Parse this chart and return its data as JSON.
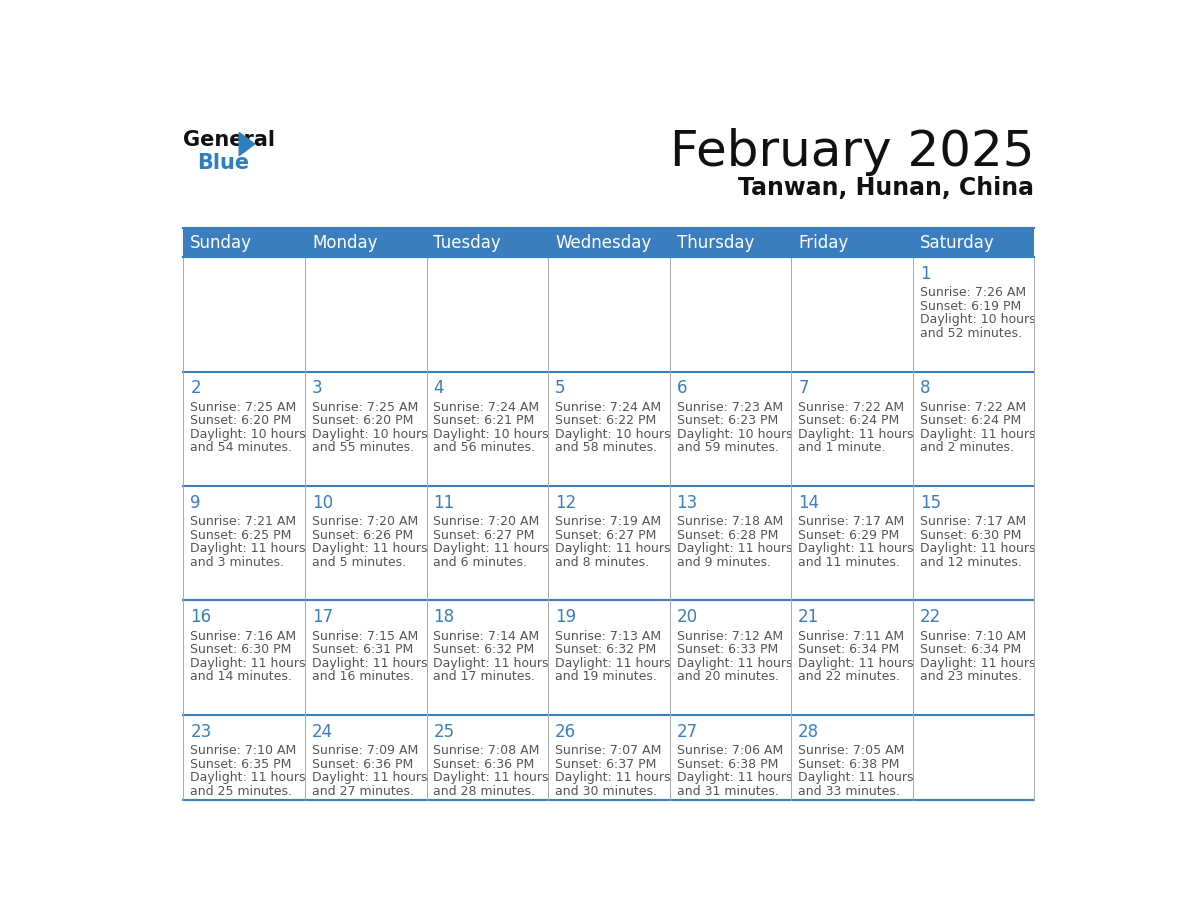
{
  "title": "February 2025",
  "subtitle": "Tanwan, Hunan, China",
  "header_bg_color": "#3a7ebf",
  "header_text_color": "#ffffff",
  "cell_bg_color": "#ffffff",
  "day_number_color": "#3a7ebf",
  "text_color": "#555555",
  "border_color": "#3a7ebf",
  "line_color": "#aaaaaa",
  "days_of_week": [
    "Sunday",
    "Monday",
    "Tuesday",
    "Wednesday",
    "Thursday",
    "Friday",
    "Saturday"
  ],
  "calendar_data": [
    [
      null,
      null,
      null,
      null,
      null,
      null,
      {
        "day": "1",
        "sunrise": "7:26 AM",
        "sunset": "6:19 PM",
        "daylight_line1": "Daylight: 10 hours",
        "daylight_line2": "and 52 minutes."
      }
    ],
    [
      {
        "day": "2",
        "sunrise": "7:25 AM",
        "sunset": "6:20 PM",
        "daylight_line1": "Daylight: 10 hours",
        "daylight_line2": "and 54 minutes."
      },
      {
        "day": "3",
        "sunrise": "7:25 AM",
        "sunset": "6:20 PM",
        "daylight_line1": "Daylight: 10 hours",
        "daylight_line2": "and 55 minutes."
      },
      {
        "day": "4",
        "sunrise": "7:24 AM",
        "sunset": "6:21 PM",
        "daylight_line1": "Daylight: 10 hours",
        "daylight_line2": "and 56 minutes."
      },
      {
        "day": "5",
        "sunrise": "7:24 AM",
        "sunset": "6:22 PM",
        "daylight_line1": "Daylight: 10 hours",
        "daylight_line2": "and 58 minutes."
      },
      {
        "day": "6",
        "sunrise": "7:23 AM",
        "sunset": "6:23 PM",
        "daylight_line1": "Daylight: 10 hours",
        "daylight_line2": "and 59 minutes."
      },
      {
        "day": "7",
        "sunrise": "7:22 AM",
        "sunset": "6:24 PM",
        "daylight_line1": "Daylight: 11 hours",
        "daylight_line2": "and 1 minute."
      },
      {
        "day": "8",
        "sunrise": "7:22 AM",
        "sunset": "6:24 PM",
        "daylight_line1": "Daylight: 11 hours",
        "daylight_line2": "and 2 minutes."
      }
    ],
    [
      {
        "day": "9",
        "sunrise": "7:21 AM",
        "sunset": "6:25 PM",
        "daylight_line1": "Daylight: 11 hours",
        "daylight_line2": "and 3 minutes."
      },
      {
        "day": "10",
        "sunrise": "7:20 AM",
        "sunset": "6:26 PM",
        "daylight_line1": "Daylight: 11 hours",
        "daylight_line2": "and 5 minutes."
      },
      {
        "day": "11",
        "sunrise": "7:20 AM",
        "sunset": "6:27 PM",
        "daylight_line1": "Daylight: 11 hours",
        "daylight_line2": "and 6 minutes."
      },
      {
        "day": "12",
        "sunrise": "7:19 AM",
        "sunset": "6:27 PM",
        "daylight_line1": "Daylight: 11 hours",
        "daylight_line2": "and 8 minutes."
      },
      {
        "day": "13",
        "sunrise": "7:18 AM",
        "sunset": "6:28 PM",
        "daylight_line1": "Daylight: 11 hours",
        "daylight_line2": "and 9 minutes."
      },
      {
        "day": "14",
        "sunrise": "7:17 AM",
        "sunset": "6:29 PM",
        "daylight_line1": "Daylight: 11 hours",
        "daylight_line2": "and 11 minutes."
      },
      {
        "day": "15",
        "sunrise": "7:17 AM",
        "sunset": "6:30 PM",
        "daylight_line1": "Daylight: 11 hours",
        "daylight_line2": "and 12 minutes."
      }
    ],
    [
      {
        "day": "16",
        "sunrise": "7:16 AM",
        "sunset": "6:30 PM",
        "daylight_line1": "Daylight: 11 hours",
        "daylight_line2": "and 14 minutes."
      },
      {
        "day": "17",
        "sunrise": "7:15 AM",
        "sunset": "6:31 PM",
        "daylight_line1": "Daylight: 11 hours",
        "daylight_line2": "and 16 minutes."
      },
      {
        "day": "18",
        "sunrise": "7:14 AM",
        "sunset": "6:32 PM",
        "daylight_line1": "Daylight: 11 hours",
        "daylight_line2": "and 17 minutes."
      },
      {
        "day": "19",
        "sunrise": "7:13 AM",
        "sunset": "6:32 PM",
        "daylight_line1": "Daylight: 11 hours",
        "daylight_line2": "and 19 minutes."
      },
      {
        "day": "20",
        "sunrise": "7:12 AM",
        "sunset": "6:33 PM",
        "daylight_line1": "Daylight: 11 hours",
        "daylight_line2": "and 20 minutes."
      },
      {
        "day": "21",
        "sunrise": "7:11 AM",
        "sunset": "6:34 PM",
        "daylight_line1": "Daylight: 11 hours",
        "daylight_line2": "and 22 minutes."
      },
      {
        "day": "22",
        "sunrise": "7:10 AM",
        "sunset": "6:34 PM",
        "daylight_line1": "Daylight: 11 hours",
        "daylight_line2": "and 23 minutes."
      }
    ],
    [
      {
        "day": "23",
        "sunrise": "7:10 AM",
        "sunset": "6:35 PM",
        "daylight_line1": "Daylight: 11 hours",
        "daylight_line2": "and 25 minutes."
      },
      {
        "day": "24",
        "sunrise": "7:09 AM",
        "sunset": "6:36 PM",
        "daylight_line1": "Daylight: 11 hours",
        "daylight_line2": "and 27 minutes."
      },
      {
        "day": "25",
        "sunrise": "7:08 AM",
        "sunset": "6:36 PM",
        "daylight_line1": "Daylight: 11 hours",
        "daylight_line2": "and 28 minutes."
      },
      {
        "day": "26",
        "sunrise": "7:07 AM",
        "sunset": "6:37 PM",
        "daylight_line1": "Daylight: 11 hours",
        "daylight_line2": "and 30 minutes."
      },
      {
        "day": "27",
        "sunrise": "7:06 AM",
        "sunset": "6:38 PM",
        "daylight_line1": "Daylight: 11 hours",
        "daylight_line2": "and 31 minutes."
      },
      {
        "day": "28",
        "sunrise": "7:05 AM",
        "sunset": "6:38 PM",
        "daylight_line1": "Daylight: 11 hours",
        "daylight_line2": "and 33 minutes."
      },
      null
    ]
  ]
}
